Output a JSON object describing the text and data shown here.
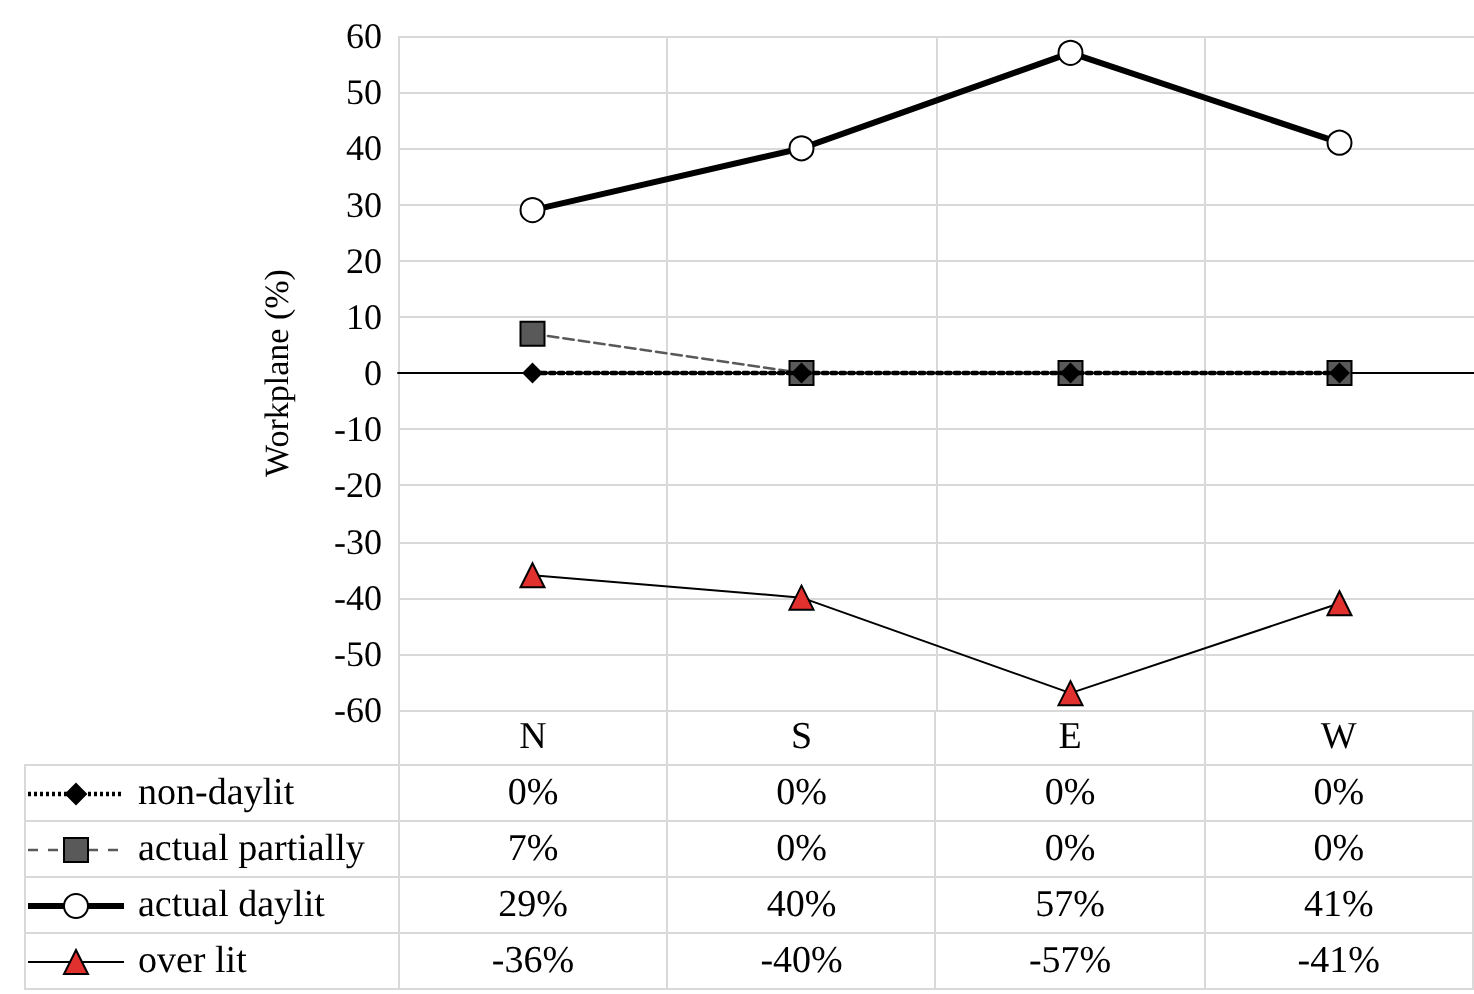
{
  "chart_data": {
    "type": "line",
    "ylabel": "Workplane (%)",
    "categories": [
      "N",
      "S",
      "E",
      "W"
    ],
    "series": [
      {
        "name": "non-daylit",
        "color": "#000000",
        "marker": "diamond",
        "line_style": "dotted",
        "values": [
          0,
          0,
          0,
          0
        ],
        "value_labels": [
          "0%",
          "0%",
          "0%",
          "0%"
        ]
      },
      {
        "name": "actual partially",
        "color": "#595959",
        "marker": "square",
        "line_style": "dashed",
        "values": [
          7,
          0,
          0,
          0
        ],
        "value_labels": [
          "7%",
          "0%",
          "0%",
          "0%"
        ]
      },
      {
        "name": "actual daylit",
        "color": "#ffffff",
        "marker": "circle",
        "line_style": "solid",
        "values": [
          29,
          40,
          57,
          41
        ],
        "value_labels": [
          "29%",
          "40%",
          "57%",
          "41%"
        ]
      },
      {
        "name": "over lit",
        "color": "#e0312f",
        "marker": "triangle",
        "line_style": "solid",
        "values": [
          -36,
          -40,
          -57,
          -41
        ],
        "value_labels": [
          "-36%",
          "-40%",
          "-57%",
          "-41%"
        ]
      }
    ],
    "ylim": [
      -60,
      60
    ],
    "yticks": [
      -60,
      -50,
      -40,
      -30,
      -20,
      -10,
      0,
      10,
      20,
      30,
      40,
      50,
      60
    ],
    "grid": true,
    "legend": "bottom left"
  }
}
